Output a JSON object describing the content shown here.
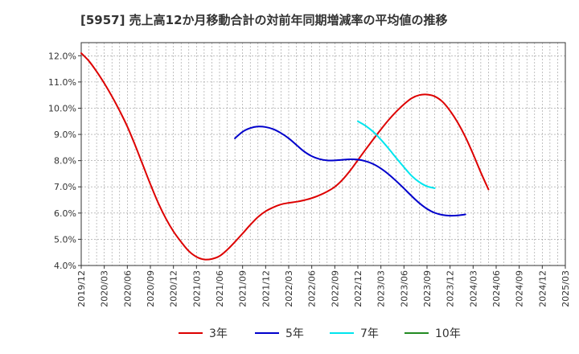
{
  "chart_data": {
    "type": "line",
    "title": "[5957]  売上高12か月移動合計の対前年同期増減率の平均値の推移",
    "xlabel": "",
    "ylabel": "",
    "ylim": [
      4.0,
      12.5
    ],
    "xlim": [
      "2019/12",
      "2025/03"
    ],
    "y_ticks": [
      "4.0%",
      "5.0%",
      "6.0%",
      "7.0%",
      "8.0%",
      "9.0%",
      "10.0%",
      "11.0%",
      "12.0%"
    ],
    "y_tick_values": [
      4,
      5,
      6,
      7,
      8,
      9,
      10,
      11,
      12
    ],
    "x_ticks": [
      "2019/12",
      "2020/03",
      "2020/06",
      "2020/09",
      "2020/12",
      "2021/03",
      "2021/06",
      "2021/09",
      "2021/12",
      "2022/03",
      "2022/06",
      "2022/09",
      "2022/12",
      "2023/03",
      "2023/06",
      "2023/09",
      "2023/12",
      "2024/03",
      "2024/06",
      "2024/09",
      "2024/12",
      "2025/03"
    ],
    "grid": true,
    "legend_position": "bottom",
    "series": [
      {
        "name": "3年",
        "color": "#dd0000",
        "points": [
          [
            "2019/12",
            12.1
          ],
          [
            "2020/01",
            11.8
          ],
          [
            "2020/02",
            11.4
          ],
          [
            "2020/03",
            10.95
          ],
          [
            "2020/04",
            10.45
          ],
          [
            "2020/05",
            9.9
          ],
          [
            "2020/06",
            9.3
          ],
          [
            "2020/07",
            8.6
          ],
          [
            "2020/08",
            7.85
          ],
          [
            "2020/09",
            7.1
          ],
          [
            "2020/10",
            6.4
          ],
          [
            "2020/11",
            5.8
          ],
          [
            "2020/12",
            5.3
          ],
          [
            "2021/01",
            4.9
          ],
          [
            "2021/02",
            4.55
          ],
          [
            "2021/03",
            4.33
          ],
          [
            "2021/04",
            4.23
          ],
          [
            "2021/05",
            4.25
          ],
          [
            "2021/06",
            4.36
          ],
          [
            "2021/07",
            4.6
          ],
          [
            "2021/08",
            4.9
          ],
          [
            "2021/09",
            5.22
          ],
          [
            "2021/10",
            5.55
          ],
          [
            "2021/11",
            5.85
          ],
          [
            "2021/12",
            6.07
          ],
          [
            "2022/01",
            6.22
          ],
          [
            "2022/02",
            6.33
          ],
          [
            "2022/03",
            6.39
          ],
          [
            "2022/04",
            6.43
          ],
          [
            "2022/05",
            6.49
          ],
          [
            "2022/06",
            6.57
          ],
          [
            "2022/07",
            6.68
          ],
          [
            "2022/08",
            6.82
          ],
          [
            "2022/09",
            7.0
          ],
          [
            "2022/10",
            7.27
          ],
          [
            "2022/11",
            7.62
          ],
          [
            "2022/12",
            8.02
          ],
          [
            "2023/01",
            8.42
          ],
          [
            "2023/02",
            8.81
          ],
          [
            "2023/03",
            9.19
          ],
          [
            "2023/04",
            9.55
          ],
          [
            "2023/05",
            9.87
          ],
          [
            "2023/06",
            10.15
          ],
          [
            "2023/07",
            10.38
          ],
          [
            "2023/08",
            10.5
          ],
          [
            "2023/09",
            10.52
          ],
          [
            "2023/10",
            10.45
          ],
          [
            "2023/11",
            10.25
          ],
          [
            "2023/12",
            9.9
          ],
          [
            "2024/01",
            9.45
          ],
          [
            "2024/02",
            8.9
          ],
          [
            "2024/03",
            8.25
          ],
          [
            "2024/04",
            7.55
          ],
          [
            "2024/05",
            6.9
          ]
        ]
      },
      {
        "name": "5年",
        "color": "#0000cc",
        "points": [
          [
            "2021/08",
            8.85
          ],
          [
            "2021/09",
            9.1
          ],
          [
            "2021/10",
            9.24
          ],
          [
            "2021/11",
            9.3
          ],
          [
            "2021/12",
            9.28
          ],
          [
            "2022/01",
            9.2
          ],
          [
            "2022/02",
            9.05
          ],
          [
            "2022/03",
            8.85
          ],
          [
            "2022/04",
            8.6
          ],
          [
            "2022/05",
            8.35
          ],
          [
            "2022/06",
            8.17
          ],
          [
            "2022/07",
            8.06
          ],
          [
            "2022/08",
            8.01
          ],
          [
            "2022/09",
            8.01
          ],
          [
            "2022/10",
            8.03
          ],
          [
            "2022/11",
            8.05
          ],
          [
            "2022/12",
            8.04
          ],
          [
            "2023/01",
            7.98
          ],
          [
            "2023/02",
            7.87
          ],
          [
            "2023/03",
            7.7
          ],
          [
            "2023/04",
            7.48
          ],
          [
            "2023/05",
            7.22
          ],
          [
            "2023/06",
            6.94
          ],
          [
            "2023/07",
            6.65
          ],
          [
            "2023/08",
            6.38
          ],
          [
            "2023/09",
            6.16
          ],
          [
            "2023/10",
            6.01
          ],
          [
            "2023/11",
            5.93
          ],
          [
            "2023/12",
            5.9
          ],
          [
            "2024/01",
            5.91
          ],
          [
            "2024/02",
            5.95
          ]
        ]
      },
      {
        "name": "7年",
        "color": "#00e5ee",
        "points": [
          [
            "2022/12",
            9.5
          ],
          [
            "2023/01",
            9.33
          ],
          [
            "2023/02",
            9.1
          ],
          [
            "2023/03",
            8.8
          ],
          [
            "2023/04",
            8.46
          ],
          [
            "2023/05",
            8.1
          ],
          [
            "2023/06",
            7.75
          ],
          [
            "2023/07",
            7.42
          ],
          [
            "2023/08",
            7.18
          ],
          [
            "2023/09",
            7.02
          ],
          [
            "2023/10",
            6.95
          ]
        ]
      },
      {
        "name": "10年",
        "color": "#228b22",
        "points": []
      }
    ]
  }
}
